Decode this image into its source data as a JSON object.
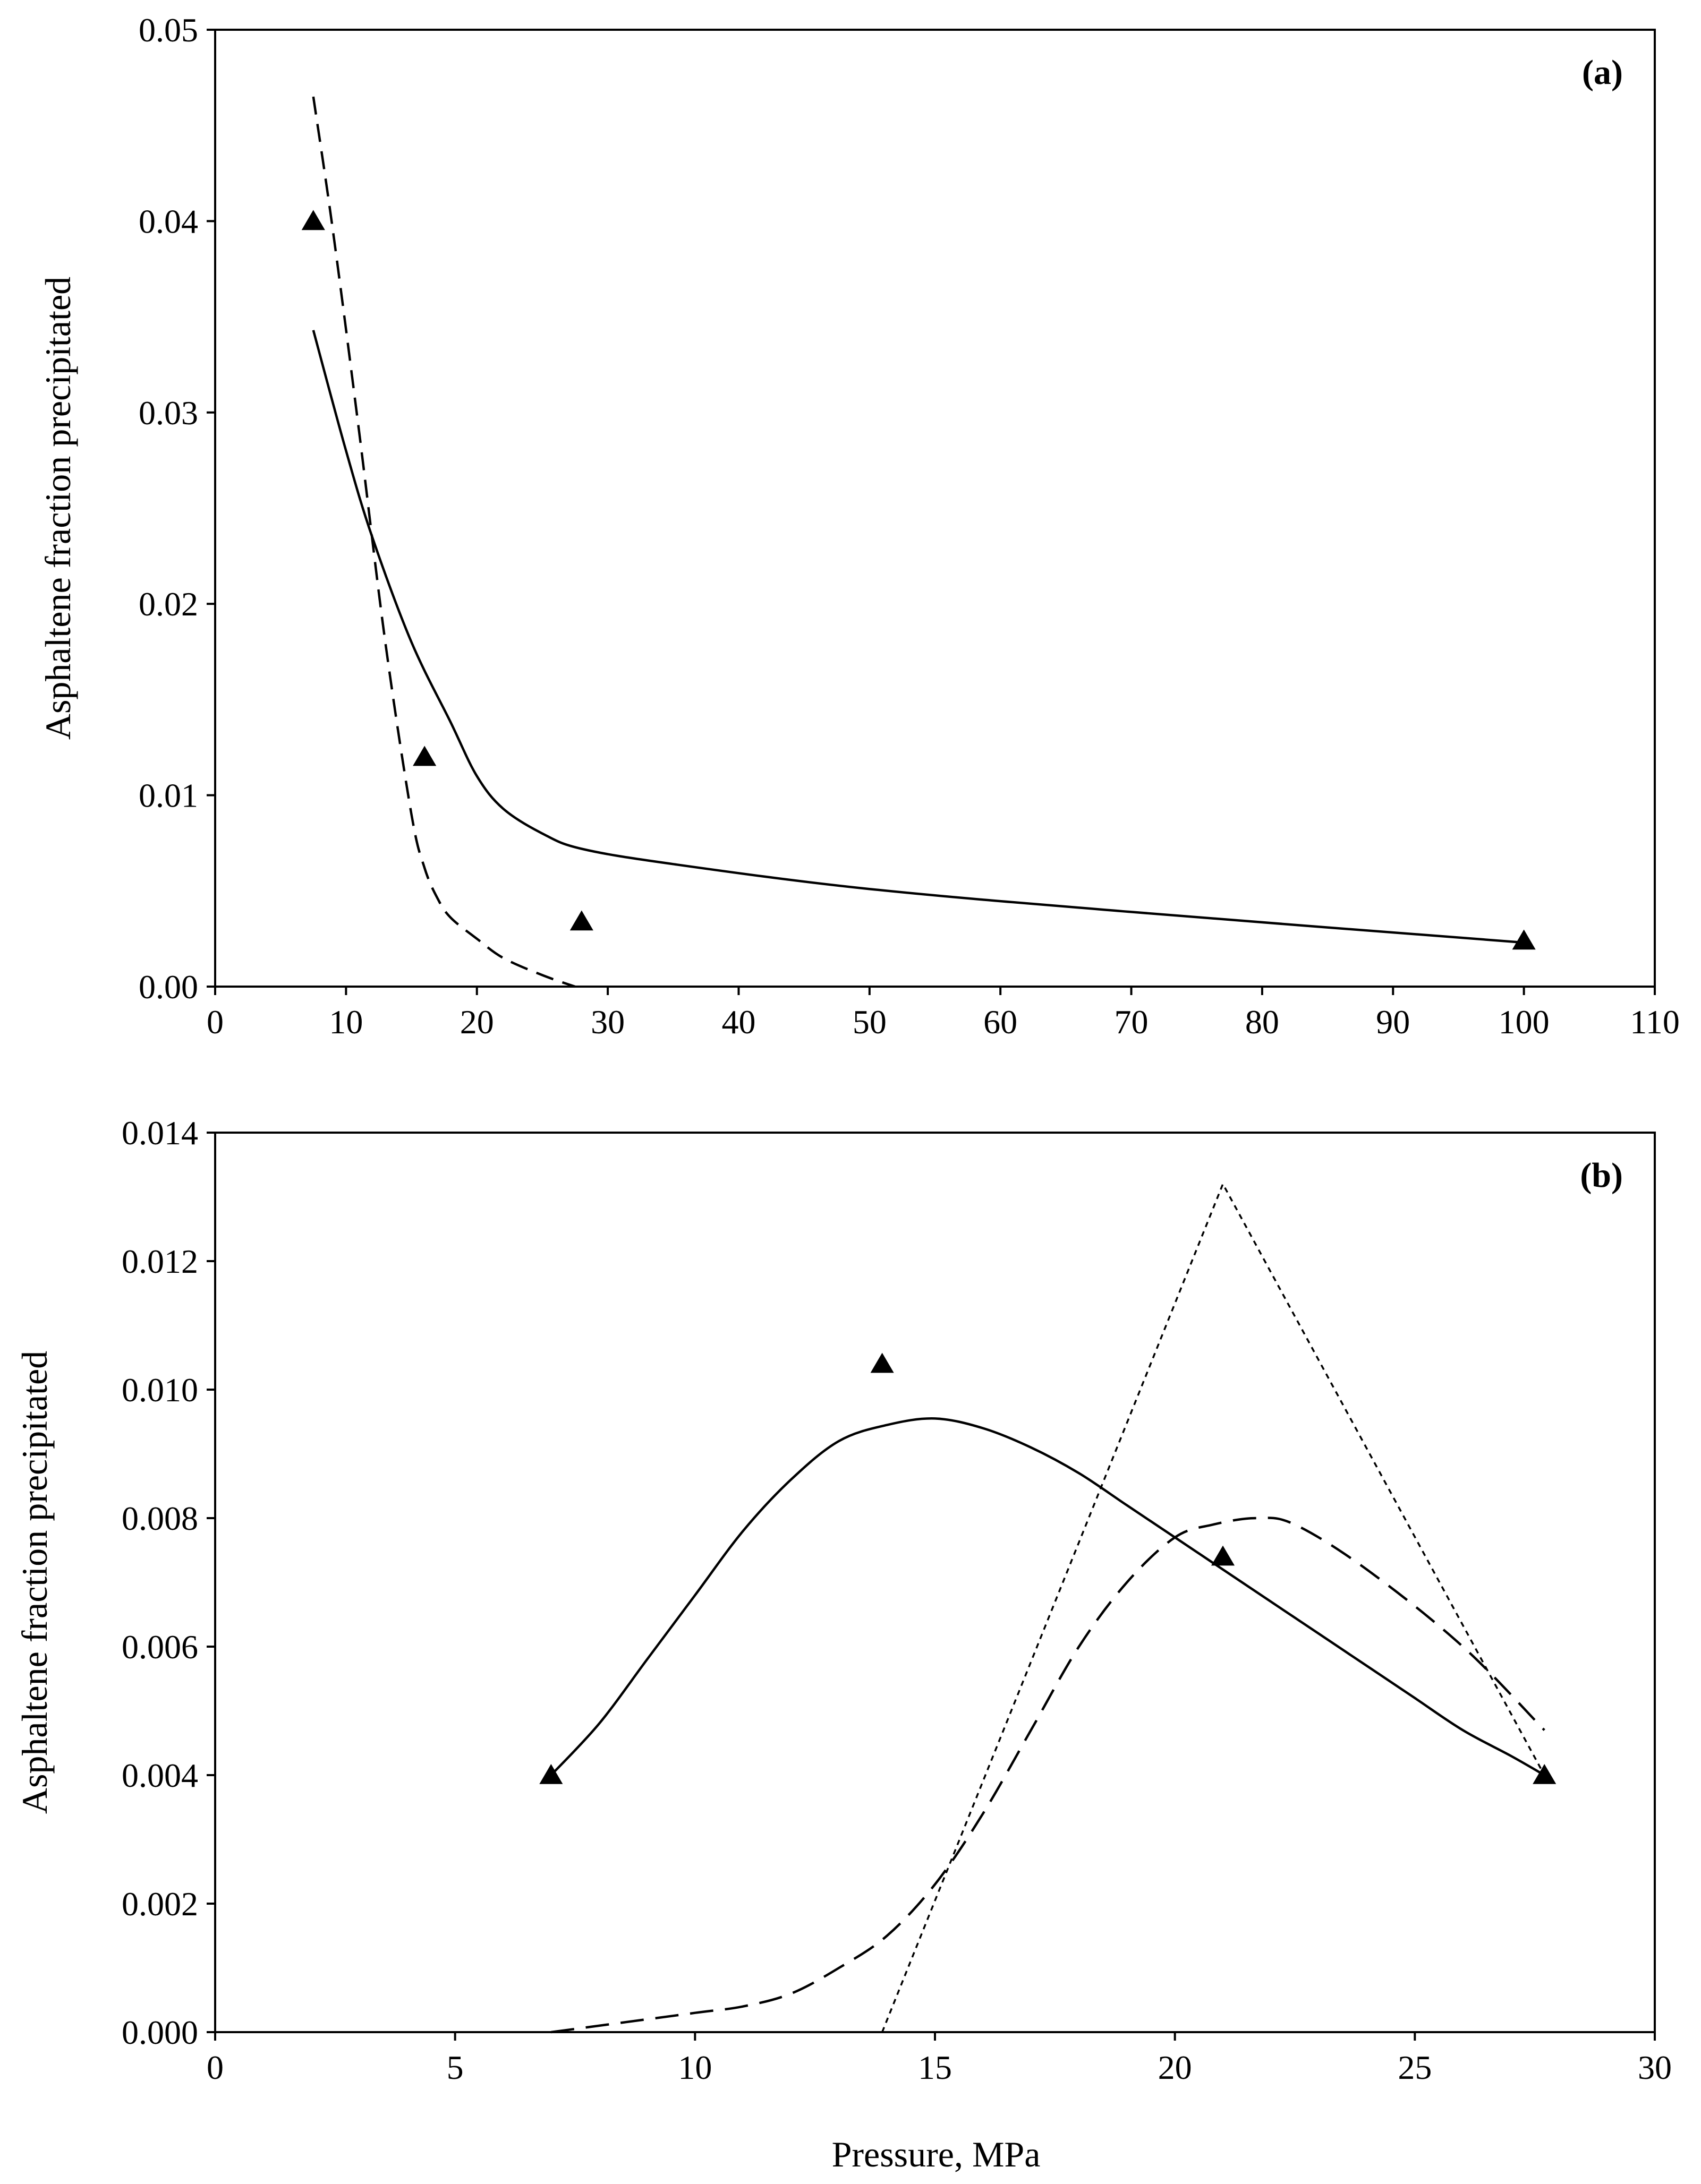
{
  "chart_data": [
    {
      "panel": "(a)",
      "type": "scatter+line",
      "title": "",
      "xlabel": "",
      "ylabel": "Asphaltene fraction precipitated",
      "xlim": [
        0,
        110
      ],
      "ylim": [
        0,
        0.05
      ],
      "x_ticks": [
        "0",
        "10",
        "20",
        "30",
        "40",
        "50",
        "60",
        "70",
        "80",
        "90",
        "100",
        "110"
      ],
      "y_ticks": [
        "0.00",
        "0.01",
        "0.02",
        "0.03",
        "0.04",
        "0.05"
      ],
      "grid": false,
      "legend": "none",
      "series": [
        {
          "name": "experimental",
          "style": "triangle-markers",
          "x": [
            7.5,
            16,
            28,
            100
          ],
          "y": [
            0.04,
            0.012,
            0.0034,
            0.0024
          ]
        },
        {
          "name": "model (solid)",
          "style": "solid",
          "x": [
            7.5,
            10,
            12,
            15,
            18,
            20,
            22,
            25,
            28,
            35,
            50,
            70,
            100
          ],
          "y": [
            0.0343,
            0.028,
            0.0235,
            0.018,
            0.0138,
            0.011,
            0.0093,
            0.008,
            0.0072,
            0.0064,
            0.0051,
            0.0039,
            0.0023
          ]
        },
        {
          "name": "model (dashed)",
          "style": "dashed",
          "x": [
            7.5,
            9,
            11,
            13,
            15,
            16,
            17,
            18,
            20,
            22,
            25,
            27.5
          ],
          "y": [
            0.0465,
            0.0395,
            0.029,
            0.018,
            0.009,
            0.0062,
            0.0046,
            0.0036,
            0.0025,
            0.0015,
            0.0006,
            0.0
          ]
        }
      ]
    },
    {
      "panel": "(b)",
      "type": "scatter+line",
      "title": "",
      "xlabel": "Pressure, MPa",
      "ylabel": "Asphaltene fraction precipitated",
      "xlim": [
        0,
        30
      ],
      "ylim": [
        0,
        0.014
      ],
      "x_ticks": [
        "0",
        "5",
        "10",
        "15",
        "20",
        "25",
        "30"
      ],
      "y_ticks": [
        "0.000",
        "0.002",
        "0.004",
        "0.006",
        "0.008",
        "0.010",
        "0.012",
        "0.014"
      ],
      "grid": false,
      "legend": "none",
      "series": [
        {
          "name": "experimental",
          "style": "triangle-markers",
          "x": [
            7,
            13.9,
            21,
            27.7
          ],
          "y": [
            0.004,
            0.0104,
            0.0074,
            0.004
          ]
        },
        {
          "name": "model (solid)",
          "style": "solid",
          "x": [
            7,
            8,
            9,
            10,
            11,
            12,
            13,
            14,
            15,
            16,
            17,
            18,
            19,
            20,
            21,
            22,
            23,
            24,
            25,
            26,
            27,
            27.7
          ],
          "y": [
            0.004,
            0.0048,
            0.0058,
            0.0068,
            0.0078,
            0.0086,
            0.0092,
            0.00945,
            0.00955,
            0.0094,
            0.0091,
            0.0087,
            0.0082,
            0.0077,
            0.0072,
            0.0067,
            0.0062,
            0.0057,
            0.0052,
            0.0047,
            0.0043,
            0.004
          ]
        },
        {
          "name": "model (long dash)",
          "style": "long-dash",
          "x": [
            7,
            8,
            10,
            11,
            12,
            13,
            14,
            15,
            16,
            17,
            18,
            19,
            20,
            20.8,
            21.7,
            22.5,
            24,
            26,
            27.7
          ],
          "y": [
            0.0,
            0.0001,
            0.0003,
            0.0004,
            0.0006,
            0.001,
            0.0015,
            0.0023,
            0.0034,
            0.0047,
            0.006,
            0.007,
            0.0077,
            0.0079,
            0.008,
            0.0079,
            0.0072,
            0.006,
            0.0047
          ]
        },
        {
          "name": "model (dotted)",
          "style": "dotted",
          "x": [
            13.9,
            21,
            27.7
          ],
          "y": [
            0.0,
            0.0132,
            0.004
          ]
        }
      ]
    }
  ]
}
